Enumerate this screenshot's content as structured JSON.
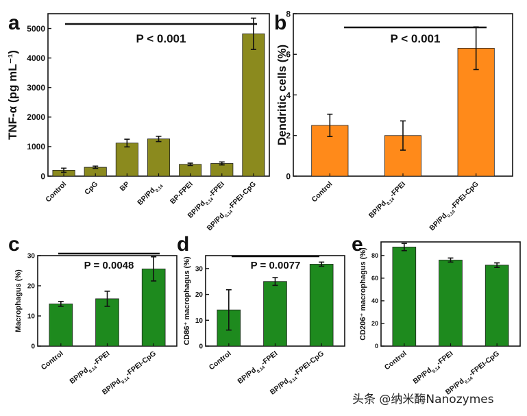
{
  "watermark": "头条 @纳米酶Nanozymes",
  "colors": {
    "olive": "#8b8a1e",
    "orange": "#ff8a1a",
    "green": "#1e8a1e"
  },
  "chart_data": [
    {
      "panel": "a",
      "type": "bar",
      "ylabel": "TNF-α (pg mL⁻¹)",
      "ylim": [
        0,
        5500
      ],
      "yticks": [
        0,
        1000,
        2000,
        3000,
        4000,
        5000
      ],
      "categories": [
        "Control",
        "CpG",
        "BP",
        "BP/Pd0.14",
        "BP-FPEI",
        "BP/Pd0.14-FPEI",
        "BP/Pd0.14-FPEI-CpG"
      ],
      "values": [
        200,
        300,
        1120,
        1260,
        400,
        430,
        4820
      ],
      "errors": [
        70,
        40,
        130,
        90,
        40,
        50,
        530
      ],
      "pvalue": "P < 0.001",
      "color": "olive"
    },
    {
      "panel": "b",
      "type": "bar",
      "ylabel": "Dendritic cells (%)",
      "ylim": [
        0,
        8
      ],
      "yticks": [
        0,
        2,
        4,
        6,
        8
      ],
      "categories": [
        "Control",
        "BP/Pd0.14-FPEI",
        "BP/Pd0.14-FPEI-CpG"
      ],
      "values": [
        2.5,
        2.0,
        6.3
      ],
      "errors": [
        0.55,
        0.72,
        1.05
      ],
      "pvalue": "P < 0.001",
      "color": "orange"
    },
    {
      "panel": "c",
      "type": "bar",
      "ylabel": "Macrophagus (%)",
      "ylim": [
        0,
        30
      ],
      "yticks": [
        0,
        10,
        20,
        30
      ],
      "categories": [
        "Control",
        "BP/Pd0.14-FPEI",
        "BP/Pd0.14-FPEI-CpG"
      ],
      "values": [
        14,
        15.7,
        25.6
      ],
      "errors": [
        0.8,
        2.5,
        4.0
      ],
      "pvalue": "P = 0.0048",
      "color": "green"
    },
    {
      "panel": "d",
      "type": "bar",
      "ylabel": "CD86⁺ macrophagus (%)",
      "ylim": [
        0,
        35
      ],
      "yticks": [
        0,
        10,
        20,
        30
      ],
      "categories": [
        "Control",
        "BP/Pd0.14-FPEI",
        "BP/Pd0.14-FPEI-CpG"
      ],
      "values": [
        14,
        25,
        31.7
      ],
      "errors": [
        7.8,
        1.5,
        0.8
      ],
      "pvalue": "P = 0.0077",
      "color": "green"
    },
    {
      "panel": "e",
      "type": "bar",
      "ylabel": "CD206⁺ macrophagus (%)",
      "ylim": [
        0,
        92
      ],
      "yticks": [
        0,
        20,
        40,
        60,
        80
      ],
      "categories": [
        "Control",
        "BP/Pd0.14-FPEI",
        "BP/Pd0.14-FPEI-CpG"
      ],
      "values": [
        87.5,
        76,
        71.5
      ],
      "errors": [
        3.2,
        1.8,
        2.0
      ],
      "pvalue": "",
      "color": "green"
    }
  ]
}
